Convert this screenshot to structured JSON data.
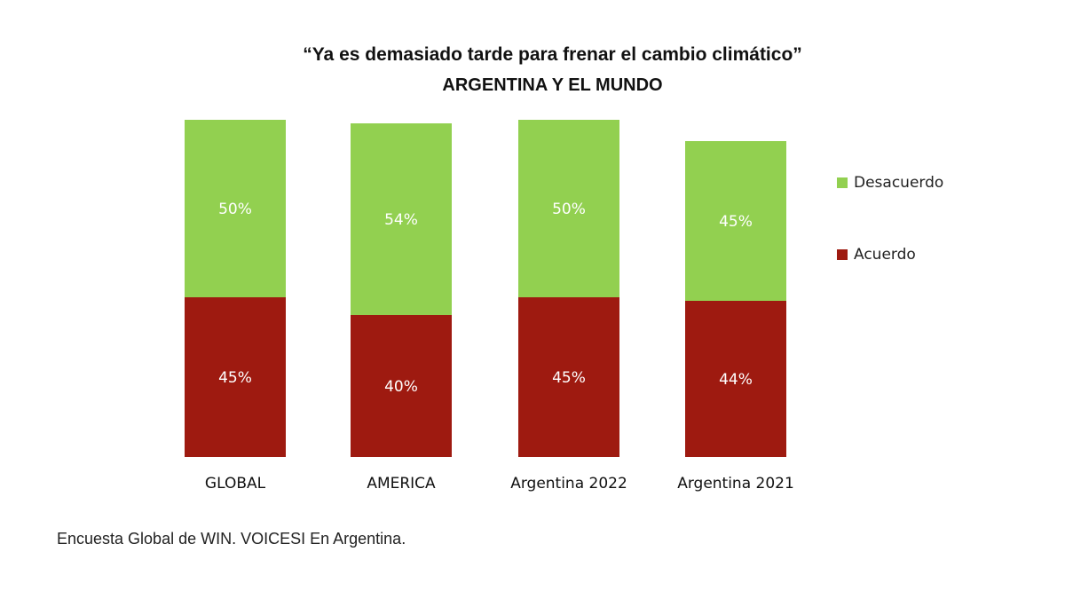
{
  "chart_data": {
    "type": "bar",
    "stacked": true,
    "title": "“Ya es demasiado tarde para frenar el cambio climático”",
    "subtitle": "ARGENTINA Y EL MUNDO",
    "categories": [
      "GLOBAL",
      "AMERICA",
      "Argentina 2022",
      "Argentina 2021"
    ],
    "series": [
      {
        "name": "Acuerdo",
        "color": "#9e1a10",
        "values": [
          45,
          40,
          45,
          44
        ],
        "labels": [
          "45%",
          "40%",
          "45%",
          "44%"
        ]
      },
      {
        "name": "Desacuerdo",
        "color": "#92d050",
        "values": [
          50,
          54,
          50,
          45
        ],
        "labels": [
          "50%",
          "54%",
          "50%",
          "45%"
        ]
      }
    ],
    "legend": {
      "position": "right",
      "entries": [
        "Desacuerdo",
        "Acuerdo"
      ]
    },
    "ylim": [
      0,
      95
    ],
    "grid": false,
    "source": "Encuesta Global de WIN. VOICESI En Argentina."
  }
}
